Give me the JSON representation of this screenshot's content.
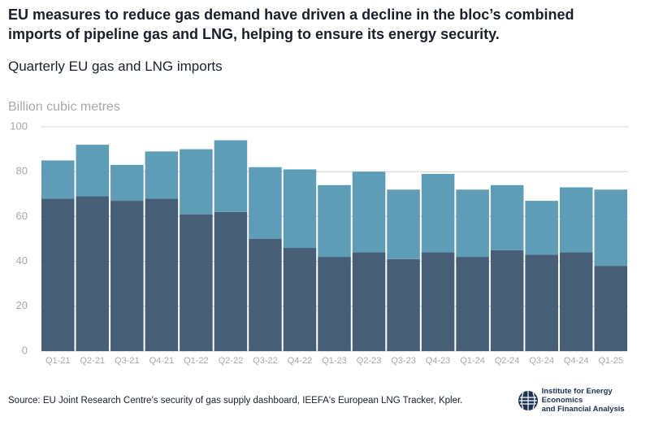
{
  "chart_data": {
    "type": "stacked_bar",
    "title": "EU measures to reduce gas demand have driven a decline in the bloc’s combined imports of pipeline gas and LNG, helping to ensure its energy security.",
    "subtitle": "Quarterly EU gas and LNG imports",
    "y_label": "Billion cubic metres",
    "categories": [
      "Q1-21",
      "Q2-21",
      "Q3-21",
      "Q4-21",
      "Q1-22",
      "Q2-22",
      "Q3-22",
      "Q4-22",
      "Q1-23",
      "Q2-23",
      "Q3-23",
      "Q4-23",
      "Q1-24",
      "Q2-24",
      "Q3-24",
      "Q4-24",
      "Q1-25"
    ],
    "series": [
      {
        "color": "#465e76",
        "values": [
          68,
          69,
          67,
          68,
          61,
          62,
          50,
          46,
          42,
          44,
          41,
          44,
          42,
          45,
          43,
          44,
          38
        ]
      },
      {
        "color": "#5f9db6",
        "values": [
          17,
          23,
          16,
          21,
          29,
          32,
          32,
          35,
          32,
          36,
          31,
          35,
          30,
          29,
          24,
          29,
          34
        ]
      }
    ],
    "ylim": [
      0,
      100
    ],
    "yticks": [
      0,
      20,
      40,
      60,
      80,
      100
    ],
    "grid": true,
    "source": "Source: EU Joint Research Centre’s security of gas supply dashboard, IEEFA's European LNG Tracker, Kpler.",
    "logo_text": [
      "Institute for Energy Economics",
      "and Financial Analysis"
    ]
  }
}
